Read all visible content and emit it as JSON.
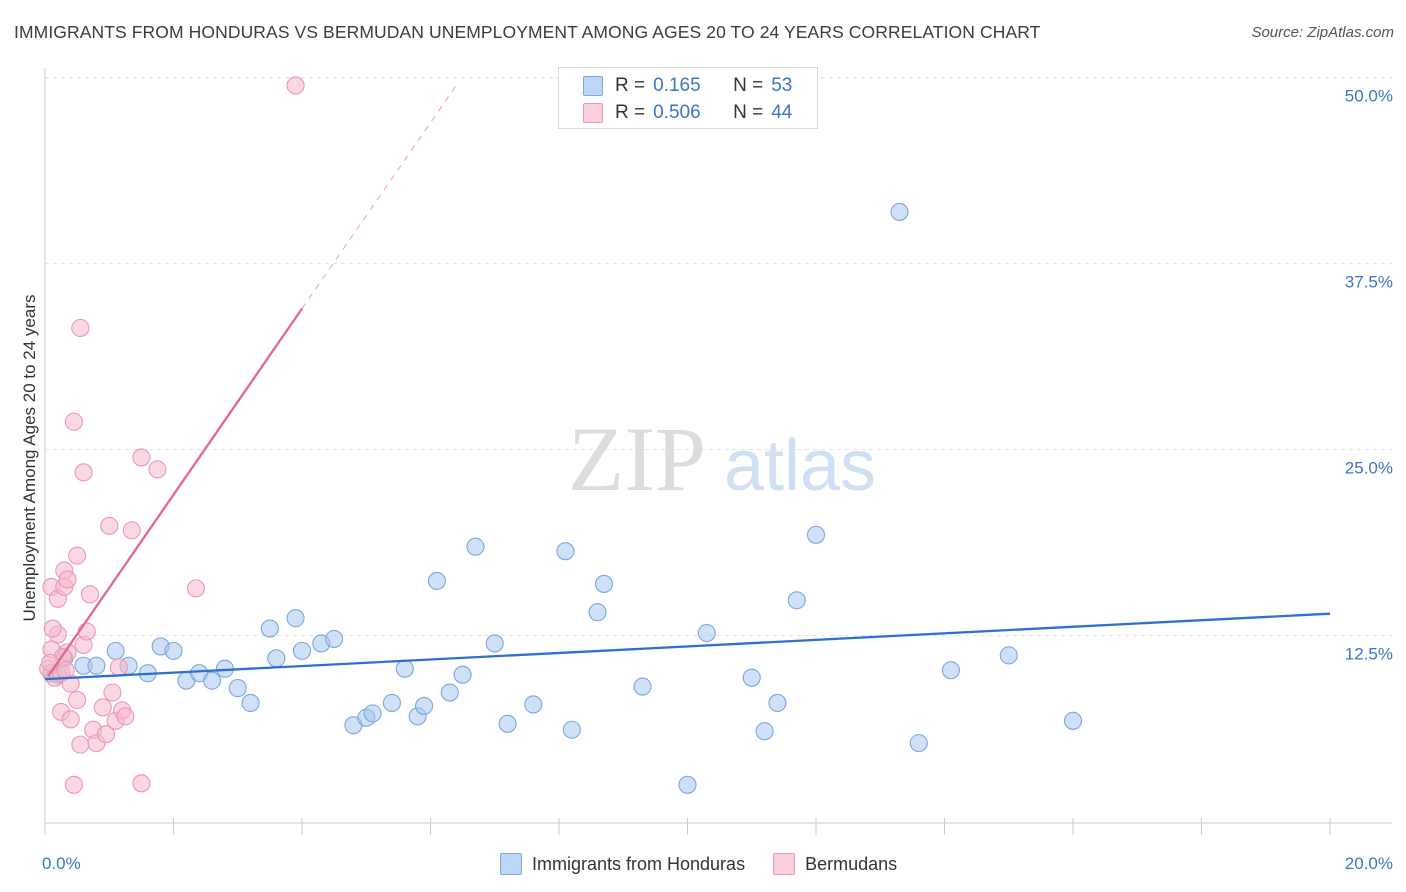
{
  "header": {
    "title": "IMMIGRANTS FROM HONDURAS VS BERMUDAN UNEMPLOYMENT AMONG AGES 20 TO 24 YEARS CORRELATION CHART",
    "source": "Source: ZipAtlas.com"
  },
  "watermark": {
    "zip": "ZIP",
    "atlas": "atlas"
  },
  "legend": {
    "r_label": "R =",
    "n_label": "N =",
    "series1": {
      "r": "0.165",
      "n": "53",
      "color": "#a9c8f0"
    },
    "series2": {
      "r": "0.506",
      "n": "44",
      "color": "#f5b8cb"
    }
  },
  "chart_data": {
    "type": "scatter",
    "title": "IMMIGRANTS FROM HONDURAS VS BERMUDAN UNEMPLOYMENT AMONG AGES 20 TO 24 YEARS CORRELATION CHART",
    "xlabel": "",
    "ylabel": "Unemployment Among Ages 20 to 24 years",
    "xlim": [
      0,
      20
    ],
    "ylim": [
      0,
      50
    ],
    "x_tick_labels": [
      "0.0%",
      "20.0%"
    ],
    "y_tick_values": [
      12.5,
      25.0,
      37.5,
      50.0
    ],
    "y_tick_labels": [
      "12.5%",
      "25.0%",
      "37.5%",
      "50.0%"
    ],
    "grid": true,
    "legend_position": "top-center",
    "series": [
      {
        "name": "Immigrants from Honduras",
        "color": "#a9c8f0",
        "stroke": "#7aa7e0",
        "line_color": "#2f6fcf",
        "trend": {
          "x0": 0.0,
          "y0": 9.6,
          "x1": 20.0,
          "y1": 14.0
        },
        "points": [
          [
            0.1,
            10.0
          ],
          [
            0.3,
            11.0
          ],
          [
            0.6,
            10.5
          ],
          [
            0.8,
            10.5
          ],
          [
            1.1,
            11.5
          ],
          [
            1.3,
            10.5
          ],
          [
            1.6,
            10.0
          ],
          [
            1.8,
            11.8
          ],
          [
            2.0,
            11.5
          ],
          [
            2.2,
            9.5
          ],
          [
            2.4,
            10.0
          ],
          [
            2.6,
            9.5
          ],
          [
            2.8,
            10.3
          ],
          [
            3.0,
            9.0
          ],
          [
            3.2,
            8.0
          ],
          [
            3.5,
            13.0
          ],
          [
            3.6,
            11.0
          ],
          [
            3.9,
            13.7
          ],
          [
            4.0,
            11.5
          ],
          [
            4.3,
            12.0
          ],
          [
            4.5,
            12.3
          ],
          [
            4.8,
            6.5
          ],
          [
            5.0,
            7.0
          ],
          [
            5.1,
            7.3
          ],
          [
            5.4,
            8.0
          ],
          [
            5.6,
            10.3
          ],
          [
            5.8,
            7.1
          ],
          [
            5.9,
            7.8
          ],
          [
            6.1,
            16.2
          ],
          [
            6.3,
            8.7
          ],
          [
            6.5,
            9.9
          ],
          [
            6.7,
            18.5
          ],
          [
            7.0,
            12.0
          ],
          [
            7.2,
            6.6
          ],
          [
            7.6,
            7.9
          ],
          [
            8.1,
            18.2
          ],
          [
            8.2,
            6.2
          ],
          [
            8.6,
            14.1
          ],
          [
            8.7,
            16.0
          ],
          [
            9.3,
            9.1
          ],
          [
            10.0,
            2.5
          ],
          [
            10.3,
            12.7
          ],
          [
            11.0,
            9.7
          ],
          [
            11.2,
            6.1
          ],
          [
            11.4,
            8.0
          ],
          [
            11.7,
            14.9
          ],
          [
            12.0,
            19.3
          ],
          [
            13.3,
            41.0
          ],
          [
            13.6,
            5.3
          ],
          [
            14.1,
            10.2
          ],
          [
            15.0,
            11.2
          ],
          [
            16.0,
            6.8
          ],
          [
            0.2,
            9.9
          ]
        ]
      },
      {
        "name": "Bermudans",
        "color": "#f5b8cb",
        "stroke": "#ee97b1",
        "line_color": "#e36590",
        "trend": {
          "x0": 0.05,
          "y0": 9.8,
          "x1": 4.0,
          "y1": 34.5
        },
        "trend_dashed": {
          "x0": 4.0,
          "y0": 34.5,
          "x1": 6.4,
          "y1": 49.5
        },
        "points": [
          [
            0.05,
            10.3
          ],
          [
            0.1,
            11.6
          ],
          [
            0.1,
            15.8
          ],
          [
            0.15,
            9.7
          ],
          [
            0.2,
            12.6
          ],
          [
            0.2,
            15.0
          ],
          [
            0.25,
            7.4
          ],
          [
            0.25,
            10.0
          ],
          [
            0.3,
            16.9
          ],
          [
            0.3,
            15.8
          ],
          [
            0.35,
            11.4
          ],
          [
            0.35,
            16.3
          ],
          [
            0.4,
            9.3
          ],
          [
            0.4,
            6.9
          ],
          [
            0.45,
            26.9
          ],
          [
            0.45,
            2.5
          ],
          [
            0.5,
            17.9
          ],
          [
            0.5,
            8.2
          ],
          [
            0.55,
            33.2
          ],
          [
            0.55,
            5.2
          ],
          [
            0.6,
            11.9
          ],
          [
            0.6,
            23.5
          ],
          [
            0.65,
            12.8
          ],
          [
            0.7,
            15.3
          ],
          [
            0.75,
            6.2
          ],
          [
            0.8,
            5.3
          ],
          [
            0.9,
            7.7
          ],
          [
            0.95,
            5.9
          ],
          [
            1.0,
            19.9
          ],
          [
            1.05,
            8.7
          ],
          [
            1.1,
            6.8
          ],
          [
            1.15,
            10.4
          ],
          [
            1.2,
            7.5
          ],
          [
            1.25,
            7.1
          ],
          [
            1.35,
            19.6
          ],
          [
            1.5,
            24.5
          ],
          [
            1.5,
            2.6
          ],
          [
            1.75,
            23.7
          ],
          [
            2.35,
            15.7
          ],
          [
            3.9,
            49.5
          ],
          [
            0.12,
            13.0
          ],
          [
            0.28,
            11.1
          ],
          [
            0.32,
            10.2
          ],
          [
            0.08,
            10.7
          ]
        ]
      }
    ]
  }
}
